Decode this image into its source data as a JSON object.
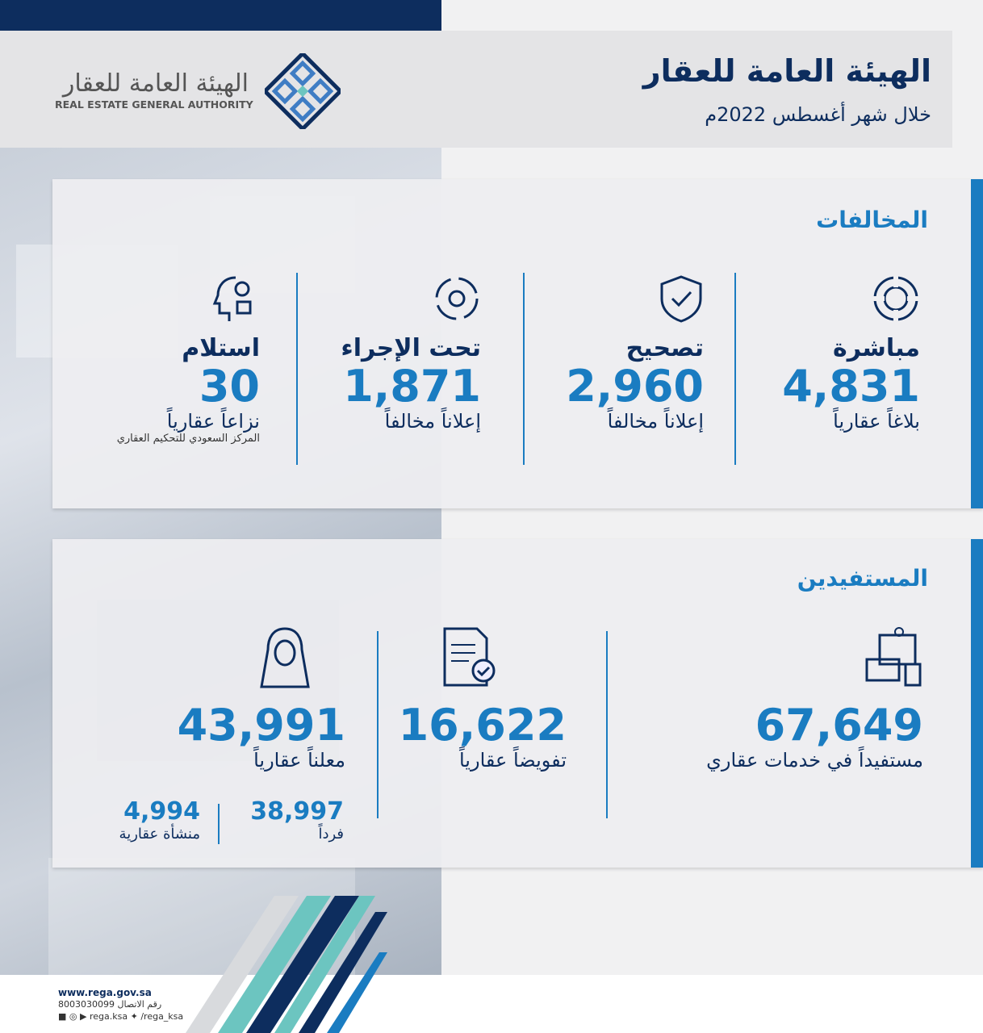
{
  "header": {
    "title": "الهيئة العامة للعقار",
    "subtitle": "خلال شهر أغسطس 2022م",
    "logo": {
      "arabic": "الهيئة العامة للعقار",
      "english": "REAL ESTATE GENERAL AUTHORITY"
    }
  },
  "violations": {
    "title": "المخالفات",
    "items": [
      {
        "label": "مباشرة",
        "value": "4,831",
        "unit": "بلاغاً عقارياً",
        "icon": "target-icon"
      },
      {
        "label": "تصحيح",
        "value": "2,960",
        "unit": "إعلاناً مخالفاً",
        "icon": "shield-check-icon"
      },
      {
        "label": "تحت الإجراء",
        "value": "1,871",
        "unit": "إعلاناً مخالفاً",
        "icon": "process-gear-icon"
      },
      {
        "label": "استلام",
        "value": "30",
        "unit": "نزاعاً عقارياً",
        "note": "المركز السعودي للتحكيم العقاري",
        "icon": "head-gear-icon"
      }
    ]
  },
  "beneficiaries": {
    "title": "المستفيدين",
    "items": [
      {
        "value": "67,649",
        "unit": "مستفيداً في خدمات عقاري",
        "icon": "devices-icon"
      },
      {
        "value": "16,622",
        "unit": "تفويضاً عقارياً",
        "icon": "document-check-icon"
      },
      {
        "value": "43,991",
        "unit": "معلناً عقارياً",
        "icon": "person-icon",
        "breakdown": [
          {
            "value": "38,997",
            "unit": "فرداً"
          },
          {
            "value": "4,994",
            "unit": "منشأة عقارية"
          }
        ]
      }
    ]
  },
  "footer": {
    "website": "www.rega.gov.sa",
    "phone": "رقم الاتصال 8003030099",
    "social1": "rega.ksa",
    "social2": "/rega_ksa"
  },
  "colors": {
    "navy": "#0d2d5e",
    "blue": "#1a7cc1",
    "teal": "#6cc5c0"
  }
}
